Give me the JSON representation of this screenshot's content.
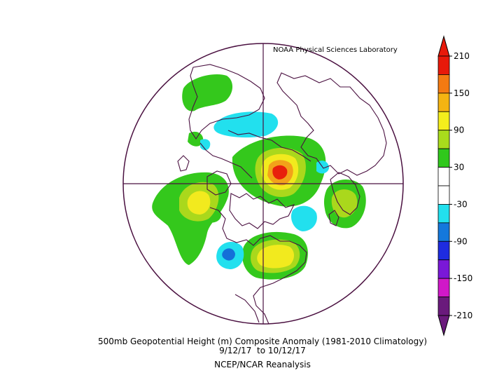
{
  "credit": "NOAA Physical Sciences Laboratory",
  "title_line1": "500mb Geopotential Height (m) Composite Anomaly (1981-2010 Climatology)",
  "title_line2": "9/12/17  to 10/12/17",
  "title_line3": "NCEP/NCAR Reanalysis",
  "colorbar": {
    "labels": [
      "210",
      "150",
      "90",
      "30",
      "-30",
      "-90",
      "-150",
      "-210"
    ],
    "colors": [
      "#e8190a",
      "#f47a12",
      "#f4b412",
      "#f4ee1c",
      "#a9dc1c",
      "#30c81c",
      "#ffffff",
      "#ffffff",
      "#22e0ee",
      "#1478dc",
      "#1e2ce0",
      "#7a18d8",
      "#d018c8",
      "#6a1a7c"
    ]
  },
  "palette": {
    "green": "#34c81c",
    "yellowgreen": "#aad81c",
    "yellow": "#f2ea1e",
    "orange": "#f2a21a",
    "red": "#e8200c",
    "cyan": "#22e0ee",
    "blue": "#1470d8",
    "coast": "#4a1040"
  }
}
